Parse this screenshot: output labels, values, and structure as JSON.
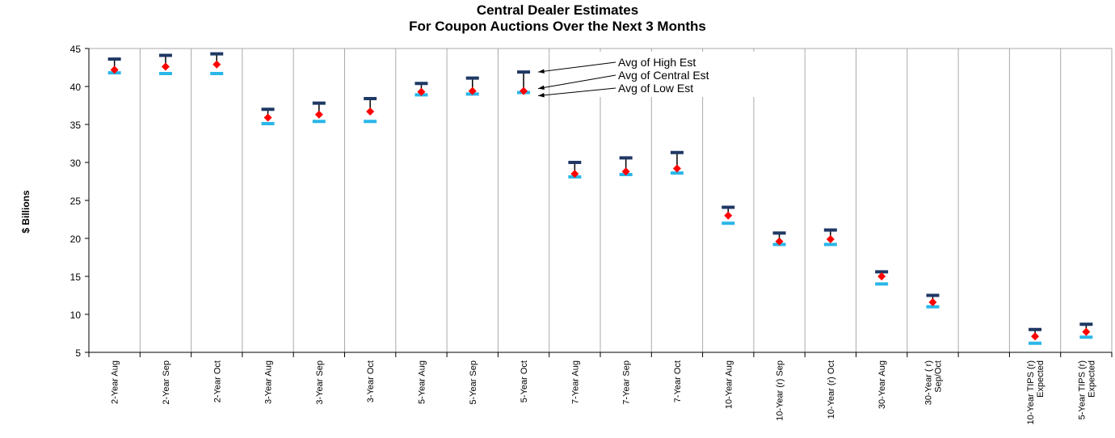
{
  "chart_data": {
    "type": "range",
    "title": "Central Dealer Estimates",
    "subtitle": "For Coupon Auctions Over the Next 3 Months",
    "y_label": "$ Billions",
    "categories": [
      "2-Year Aug",
      "2-Year Sep",
      "2-Year Oct",
      "3-Year Aug",
      "3-Year Sep",
      "3-Year Oct",
      "5-Year Aug",
      "5-Year Sep",
      "5-Year Oct",
      "7-Year Aug",
      "7-Year Sep",
      "7-Year Oct",
      "10-Year Aug",
      "10-Year (r) Sep",
      "10-Year (r) Oct",
      "30-Year Aug",
      "30-Year ( r)\nSep/Oct",
      null,
      "10-Year TIPS (r)\nExpected",
      "5-Year TIPS (r)\nExpected"
    ],
    "series": [
      {
        "name": "Avg of High Est",
        "color": "#1f3864",
        "values": [
          43.6,
          44.1,
          44.3,
          37.0,
          37.8,
          38.4,
          40.4,
          41.1,
          41.9,
          30.0,
          30.6,
          31.3,
          24.1,
          20.7,
          21.1,
          15.6,
          12.5,
          null,
          8.0,
          8.7
        ]
      },
      {
        "name": "Avg of Central Est",
        "color": "#ff0000",
        "values": [
          42.2,
          42.6,
          42.9,
          35.9,
          36.3,
          36.7,
          39.3,
          39.4,
          39.4,
          28.5,
          28.8,
          29.2,
          23.0,
          19.6,
          19.9,
          15.0,
          11.6,
          null,
          7.1,
          7.7
        ]
      },
      {
        "name": "Avg of Low Est",
        "color": "#29b6e8",
        "values": [
          41.8,
          41.7,
          41.7,
          35.1,
          35.4,
          35.4,
          38.9,
          39.0,
          39.2,
          28.1,
          28.4,
          28.6,
          22.0,
          19.2,
          19.2,
          14.0,
          11.0,
          null,
          6.2,
          7.0
        ]
      }
    ],
    "ylim": [
      5,
      45
    ],
    "yticks": [
      5,
      10,
      15,
      20,
      25,
      30,
      35,
      40,
      45
    ],
    "annotated_category": 8
  }
}
